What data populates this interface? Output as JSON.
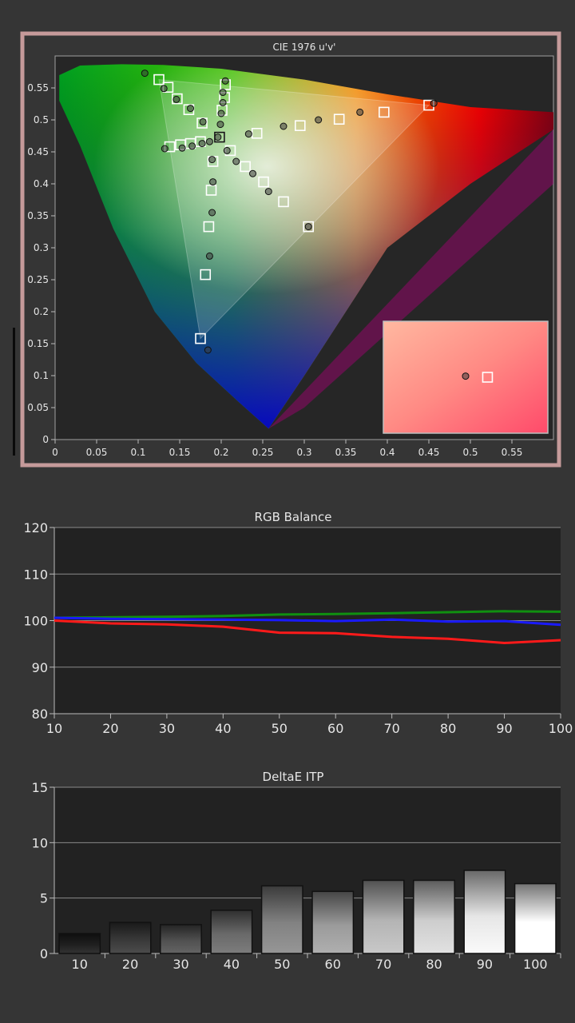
{
  "charts": {
    "cie": {
      "title": "CIE 1976 u'v'",
      "x_ticks": [
        "0",
        "0.05",
        "0.1",
        "0.15",
        "0.2",
        "0.25",
        "0.3",
        "0.35",
        "0.4",
        "0.45",
        "0.5",
        "0.55"
      ],
      "y_ticks": [
        "0",
        "0.05",
        "0.1",
        "0.15",
        "0.2",
        "0.25",
        "0.3",
        "0.35",
        "0.4",
        "0.45",
        "0.5",
        "0.55"
      ]
    },
    "rgb": {
      "title": "RGB Balance",
      "x_ticks": [
        "10",
        "20",
        "30",
        "40",
        "50",
        "60",
        "70",
        "80",
        "90",
        "100"
      ],
      "y_ticks": [
        "80",
        "90",
        "100",
        "110",
        "120"
      ]
    },
    "deltae": {
      "title": "DeltaE ITP",
      "x_ticks": [
        "10",
        "20",
        "30",
        "40",
        "50",
        "60",
        "70",
        "80",
        "90",
        "100"
      ],
      "y_ticks": [
        "0",
        "5",
        "10",
        "15"
      ]
    }
  },
  "chart_data": [
    {
      "type": "scatter",
      "title": "CIE 1976 u'v'",
      "xlim": [
        0,
        0.6
      ],
      "ylim": [
        0,
        0.6
      ],
      "grid": false,
      "gamut_triangle": [
        [
          0.45,
          0.523
        ],
        [
          0.125,
          0.563
        ],
        [
          0.175,
          0.158
        ]
      ],
      "targets": [
        [
          0.125,
          0.563
        ],
        [
          0.136,
          0.551
        ],
        [
          0.147,
          0.533
        ],
        [
          0.161,
          0.516
        ],
        [
          0.177,
          0.495
        ],
        [
          0.198,
          0.473
        ],
        [
          0.205,
          0.555
        ],
        [
          0.204,
          0.535
        ],
        [
          0.201,
          0.515
        ],
        [
          0.243,
          0.479
        ],
        [
          0.295,
          0.491
        ],
        [
          0.342,
          0.501
        ],
        [
          0.396,
          0.512
        ],
        [
          0.45,
          0.523
        ],
        [
          0.138,
          0.458
        ],
        [
          0.151,
          0.461
        ],
        [
          0.163,
          0.463
        ],
        [
          0.175,
          0.466
        ],
        [
          0.211,
          0.452
        ],
        [
          0.229,
          0.427
        ],
        [
          0.251,
          0.403
        ],
        [
          0.275,
          0.372
        ],
        [
          0.305,
          0.333
        ],
        [
          0.19,
          0.435
        ],
        [
          0.188,
          0.39
        ],
        [
          0.185,
          0.333
        ],
        [
          0.181,
          0.258
        ],
        [
          0.175,
          0.158
        ]
      ],
      "measured": [
        [
          0.108,
          0.573
        ],
        [
          0.131,
          0.549
        ],
        [
          0.146,
          0.532
        ],
        [
          0.163,
          0.518
        ],
        [
          0.178,
          0.497
        ],
        [
          0.196,
          0.473
        ],
        [
          0.205,
          0.561
        ],
        [
          0.202,
          0.543
        ],
        [
          0.202,
          0.527
        ],
        [
          0.2,
          0.51
        ],
        [
          0.199,
          0.493
        ],
        [
          0.233,
          0.478
        ],
        [
          0.275,
          0.49
        ],
        [
          0.317,
          0.5
        ],
        [
          0.367,
          0.512
        ],
        [
          0.456,
          0.526
        ],
        [
          0.132,
          0.455
        ],
        [
          0.153,
          0.456
        ],
        [
          0.165,
          0.459
        ],
        [
          0.177,
          0.463
        ],
        [
          0.186,
          0.466
        ],
        [
          0.207,
          0.452
        ],
        [
          0.218,
          0.435
        ],
        [
          0.238,
          0.416
        ],
        [
          0.257,
          0.388
        ],
        [
          0.305,
          0.333
        ],
        [
          0.189,
          0.438
        ],
        [
          0.19,
          0.403
        ],
        [
          0.189,
          0.355
        ],
        [
          0.186,
          0.287
        ],
        [
          0.184,
          0.14
        ]
      ],
      "inset_target": [
        0.49,
        0.1
      ],
      "inset_measured": [
        0.45,
        0.102
      ]
    },
    {
      "type": "line",
      "title": "RGB Balance",
      "x": [
        10,
        20,
        30,
        40,
        50,
        60,
        70,
        80,
        90,
        100
      ],
      "ylim": [
        80,
        120
      ],
      "grid": true,
      "series": [
        {
          "color": "#ff1a1a",
          "values": [
            100.0,
            99.4,
            99.2,
            98.7,
            97.4,
            97.3,
            96.5,
            96.1,
            95.2,
            95.8
          ]
        },
        {
          "color": "#109010",
          "values": [
            100.6,
            100.7,
            100.8,
            101.0,
            101.3,
            101.4,
            101.6,
            101.8,
            102.0,
            101.9
          ]
        },
        {
          "color": "#1a1aff",
          "values": [
            100.6,
            100.4,
            100.3,
            100.2,
            100.1,
            99.9,
            100.2,
            99.8,
            99.9,
            99.1
          ]
        }
      ]
    },
    {
      "type": "bar",
      "title": "DeltaE ITP",
      "categories": [
        "10",
        "20",
        "30",
        "40",
        "50",
        "60",
        "70",
        "80",
        "90",
        "100"
      ],
      "values": [
        1.8,
        2.8,
        2.6,
        3.9,
        6.1,
        5.6,
        6.6,
        6.6,
        7.5,
        6.3
      ],
      "ylim": [
        0,
        15
      ],
      "grid": true
    }
  ]
}
